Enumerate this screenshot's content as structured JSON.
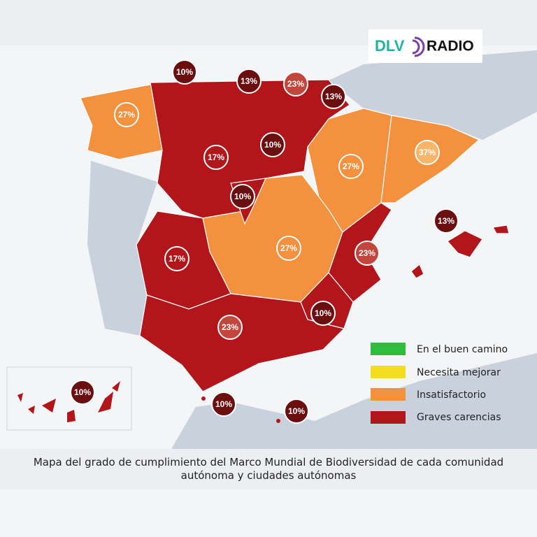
{
  "brand": {
    "name": "DLV",
    "suffix": "RADIO"
  },
  "regions": [
    {
      "name": "Galicia",
      "label": "27%"
    },
    {
      "name": "Asturias",
      "label": "10%"
    },
    {
      "name": "Cantabria",
      "label": "13%"
    },
    {
      "name": "País Vasco",
      "label": "23%"
    },
    {
      "name": "Navarra",
      "label": "13%"
    },
    {
      "name": "Castilla y León",
      "label": "17%"
    },
    {
      "name": "La Rioja",
      "label": "10%"
    },
    {
      "name": "Aragón",
      "label": "27%"
    },
    {
      "name": "Cataluña",
      "label": "37%"
    },
    {
      "name": "Madrid",
      "label": "10%"
    },
    {
      "name": "Baleares",
      "label": "13%"
    },
    {
      "name": "Extremadura",
      "label": "17%"
    },
    {
      "name": "Castilla-La Mancha",
      "label": "27%"
    },
    {
      "name": "Comunidad Valenciana",
      "label": "23%"
    },
    {
      "name": "Murcia",
      "label": "10%"
    },
    {
      "name": "Andalucía",
      "label": "23%"
    },
    {
      "name": "Canarias",
      "label": "10%"
    },
    {
      "name": "Ceuta",
      "label": "10%"
    },
    {
      "name": "Melilla",
      "label": "10%"
    }
  ],
  "legend": [
    "En el buen camino",
    "Necesita mejorar",
    "Insatisfactorio",
    "Graves carencias"
  ],
  "caption": "Mapa del grado de cumplimiento del Marco Mundial de Biodiversidad de cada comunidad autónoma y ciudades autónomas"
}
